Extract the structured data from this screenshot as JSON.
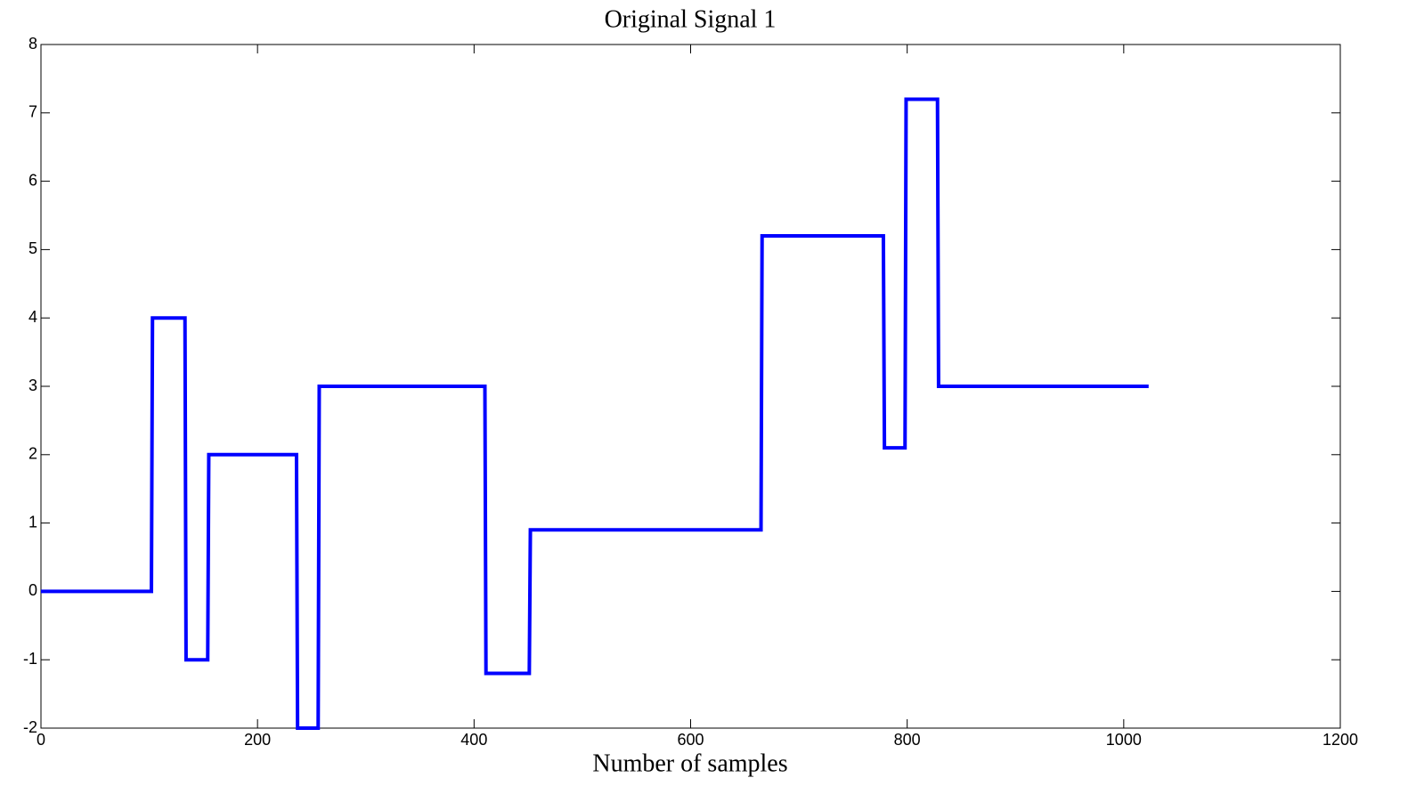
{
  "chart_data": {
    "type": "line",
    "title": "Original Signal 1",
    "x_label": "Number of samples",
    "x": [
      0,
      102,
      103,
      133,
      134,
      154,
      155,
      236,
      237,
      256,
      257,
      410,
      411,
      451,
      452,
      665,
      666,
      778,
      779,
      798,
      799,
      828,
      829,
      1023
    ],
    "series": [
      {
        "color": "#0000ff",
        "values": [
          0,
          0,
          4,
          4,
          -1,
          -1,
          2,
          2,
          -2,
          -2,
          3,
          3,
          -1.2,
          -1.2,
          0.9,
          0.9,
          5.2,
          5.2,
          2.1,
          2.1,
          7.2,
          7.2,
          3,
          3
        ]
      }
    ],
    "xlim": [
      0,
      1200
    ],
    "xticks": [
      0,
      200,
      400,
      600,
      800,
      1000,
      1200
    ],
    "ylim": [
      -2,
      8
    ],
    "yticks": [
      -2,
      -1,
      0,
      1,
      2,
      3,
      4,
      5,
      6,
      7,
      8
    ],
    "grid": false
  }
}
